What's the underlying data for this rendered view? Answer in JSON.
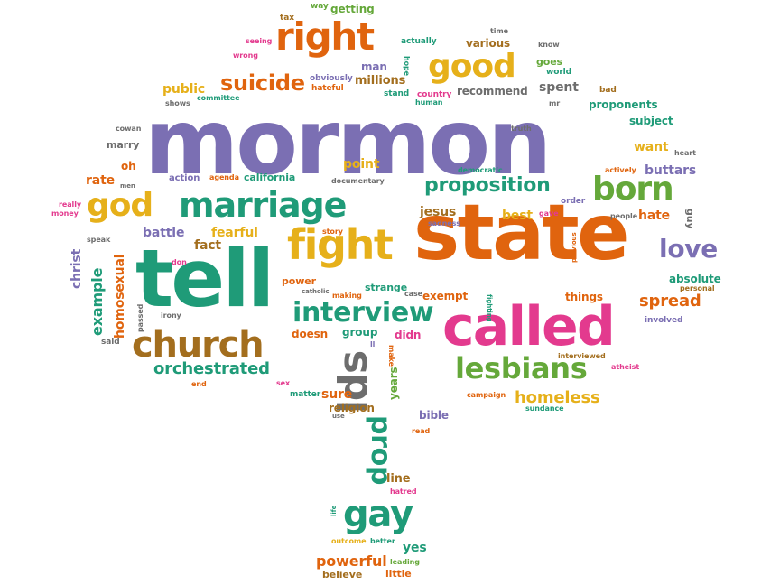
{
  "colors": {
    "purple": "#7b6fb3",
    "green": "#1f9b78",
    "orange": "#e0640e",
    "yellow": "#e6b01a",
    "magenta": "#e33a8e",
    "brown": "#a36e1e",
    "gray": "#6d6d6d",
    "lime": "#65a83a"
  },
  "words": [
    {
      "text": "mormon"
    },
    {
      "text": "state"
    },
    {
      "text": "tell"
    },
    {
      "text": "called"
    },
    {
      "text": "church"
    },
    {
      "text": "marriage"
    },
    {
      "text": "fight"
    },
    {
      "text": "right"
    },
    {
      "text": "good"
    },
    {
      "text": "born"
    },
    {
      "text": "god"
    },
    {
      "text": "interview"
    },
    {
      "text": "lesbians"
    },
    {
      "text": "proposition"
    },
    {
      "text": "lds"
    },
    {
      "text": "gay"
    },
    {
      "text": "love"
    },
    {
      "text": "suicide"
    },
    {
      "text": "orchestrated"
    },
    {
      "text": "prop"
    },
    {
      "text": "homeless"
    },
    {
      "text": "spread"
    },
    {
      "text": "buttars"
    },
    {
      "text": "hate"
    },
    {
      "text": "want"
    },
    {
      "text": "millions"
    },
    {
      "text": "public"
    },
    {
      "text": "man"
    },
    {
      "text": "spent"
    },
    {
      "text": "recommend"
    },
    {
      "text": "various"
    },
    {
      "text": "getting"
    },
    {
      "text": "tax"
    },
    {
      "text": "way"
    },
    {
      "text": "seeing"
    },
    {
      "text": "wrong"
    },
    {
      "text": "actually"
    },
    {
      "text": "hope"
    },
    {
      "text": "time"
    },
    {
      "text": "know"
    },
    {
      "text": "goes"
    },
    {
      "text": "world"
    },
    {
      "text": "bad"
    },
    {
      "text": "proponents"
    },
    {
      "text": "subject"
    },
    {
      "text": "heart"
    },
    {
      "text": "obviously"
    },
    {
      "text": "hateful"
    },
    {
      "text": "stand"
    },
    {
      "text": "country"
    },
    {
      "text": "human"
    },
    {
      "text": "committee"
    },
    {
      "text": "shows"
    },
    {
      "text": "truth"
    },
    {
      "text": "mr"
    },
    {
      "text": "cowan"
    },
    {
      "text": "marry"
    },
    {
      "text": "oh"
    },
    {
      "text": "men"
    },
    {
      "text": "rate"
    },
    {
      "text": "action"
    },
    {
      "text": "agenda"
    },
    {
      "text": "california"
    },
    {
      "text": "point"
    },
    {
      "text": "documentary"
    },
    {
      "text": "democratic"
    },
    {
      "text": "actively"
    },
    {
      "text": "order"
    },
    {
      "text": "gave"
    },
    {
      "text": "best"
    },
    {
      "text": "sadness"
    },
    {
      "text": "jesus"
    },
    {
      "text": "people"
    },
    {
      "text": "guy"
    },
    {
      "text": "really"
    },
    {
      "text": "money"
    },
    {
      "text": "battle"
    },
    {
      "text": "fearful"
    },
    {
      "text": "fact"
    },
    {
      "text": "story"
    },
    {
      "text": "christ"
    },
    {
      "text": "speak"
    },
    {
      "text": "example"
    },
    {
      "text": "homosexual"
    },
    {
      "text": "don"
    },
    {
      "text": "passed"
    },
    {
      "text": "said"
    },
    {
      "text": "irony"
    },
    {
      "text": "power"
    },
    {
      "text": "catholic"
    },
    {
      "text": "making"
    },
    {
      "text": "strange"
    },
    {
      "text": "case"
    },
    {
      "text": "exempt"
    },
    {
      "text": "fighting"
    },
    {
      "text": "previous"
    },
    {
      "text": "things"
    },
    {
      "text": "absolute"
    },
    {
      "text": "personal"
    },
    {
      "text": "involved"
    },
    {
      "text": "doesn"
    },
    {
      "text": "group"
    },
    {
      "text": "didn"
    },
    {
      "text": "make"
    },
    {
      "text": "ll"
    },
    {
      "text": "interviewed"
    },
    {
      "text": "atheist"
    },
    {
      "text": "years"
    },
    {
      "text": "end"
    },
    {
      "text": "sex"
    },
    {
      "text": "matter"
    },
    {
      "text": "sure"
    },
    {
      "text": "religion"
    },
    {
      "text": "use"
    },
    {
      "text": "campaign"
    },
    {
      "text": "sundance"
    },
    {
      "text": "bible"
    },
    {
      "text": "read"
    },
    {
      "text": "line"
    },
    {
      "text": "hatred"
    },
    {
      "text": "life"
    },
    {
      "text": "outcome"
    },
    {
      "text": "better"
    },
    {
      "text": "yes"
    },
    {
      "text": "powerful"
    },
    {
      "text": "leading"
    },
    {
      "text": "believe"
    },
    {
      "text": "little"
    }
  ]
}
